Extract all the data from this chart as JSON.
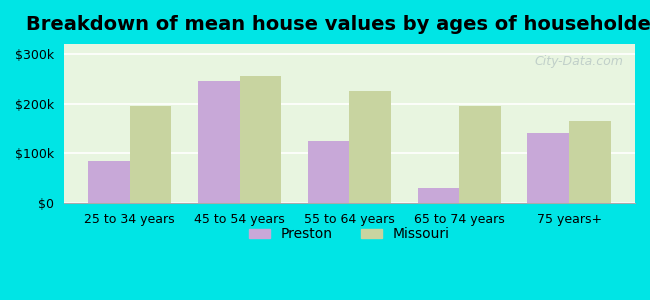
{
  "title": "Breakdown of mean house values by ages of householders",
  "categories": [
    "25 to 34 years",
    "45 to 54 years",
    "55 to 64 years",
    "65 to 74 years",
    "75 years+"
  ],
  "preston_values": [
    85000,
    245000,
    125000,
    30000,
    140000
  ],
  "missouri_values": [
    195000,
    255000,
    225000,
    195000,
    165000
  ],
  "preston_color": "#c8a8d8",
  "missouri_color": "#c8d4a0",
  "background_outer": "#00e5e5",
  "background_inner": "#e8f5e0",
  "yticks": [
    0,
    100000,
    200000,
    300000
  ],
  "ylabels": [
    "$0",
    "$100k",
    "$200k",
    "$300k"
  ],
  "ylim": [
    0,
    320000
  ],
  "bar_width": 0.38,
  "legend_preston": "Preston",
  "legend_missouri": "Missouri",
  "title_fontsize": 14
}
